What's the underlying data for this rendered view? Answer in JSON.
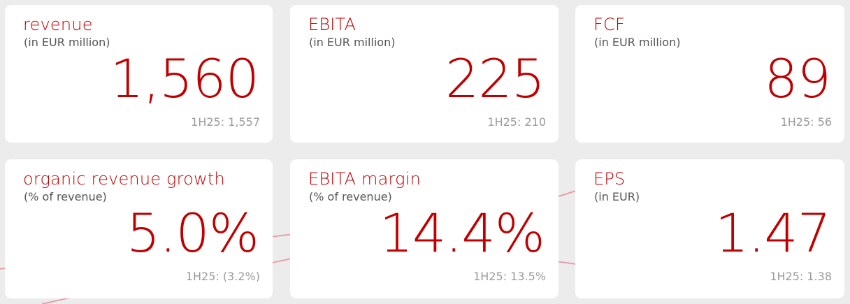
{
  "colors": {
    "accent": "#c00000",
    "subtitle": "#555555",
    "previous": "#9a9a9a",
    "background": "#ececec",
    "card": "#ffffff",
    "decorative_line": "#e8a0a8"
  },
  "kpis": [
    {
      "title": "revenue",
      "unit": "(in EUR million)",
      "value": "1,560",
      "previous": "1H25: 1,557"
    },
    {
      "title": "EBITA",
      "unit": "(in EUR million)",
      "value": "225",
      "previous": "1H25: 210"
    },
    {
      "title": "FCF",
      "unit": "(in EUR million)",
      "value": "89",
      "previous": "1H25: 56"
    },
    {
      "title": "organic revenue growth",
      "unit": "(% of revenue)",
      "value": "5.0%",
      "previous": "1H25: (3.2%)"
    },
    {
      "title": "EBITA margin",
      "unit": "(% of revenue)",
      "value": "14.4%",
      "previous": "1H25: 13.5%"
    },
    {
      "title": "EPS",
      "unit": "(in EUR)",
      "value": "1.47",
      "previous": "1H25: 1.38"
    }
  ]
}
